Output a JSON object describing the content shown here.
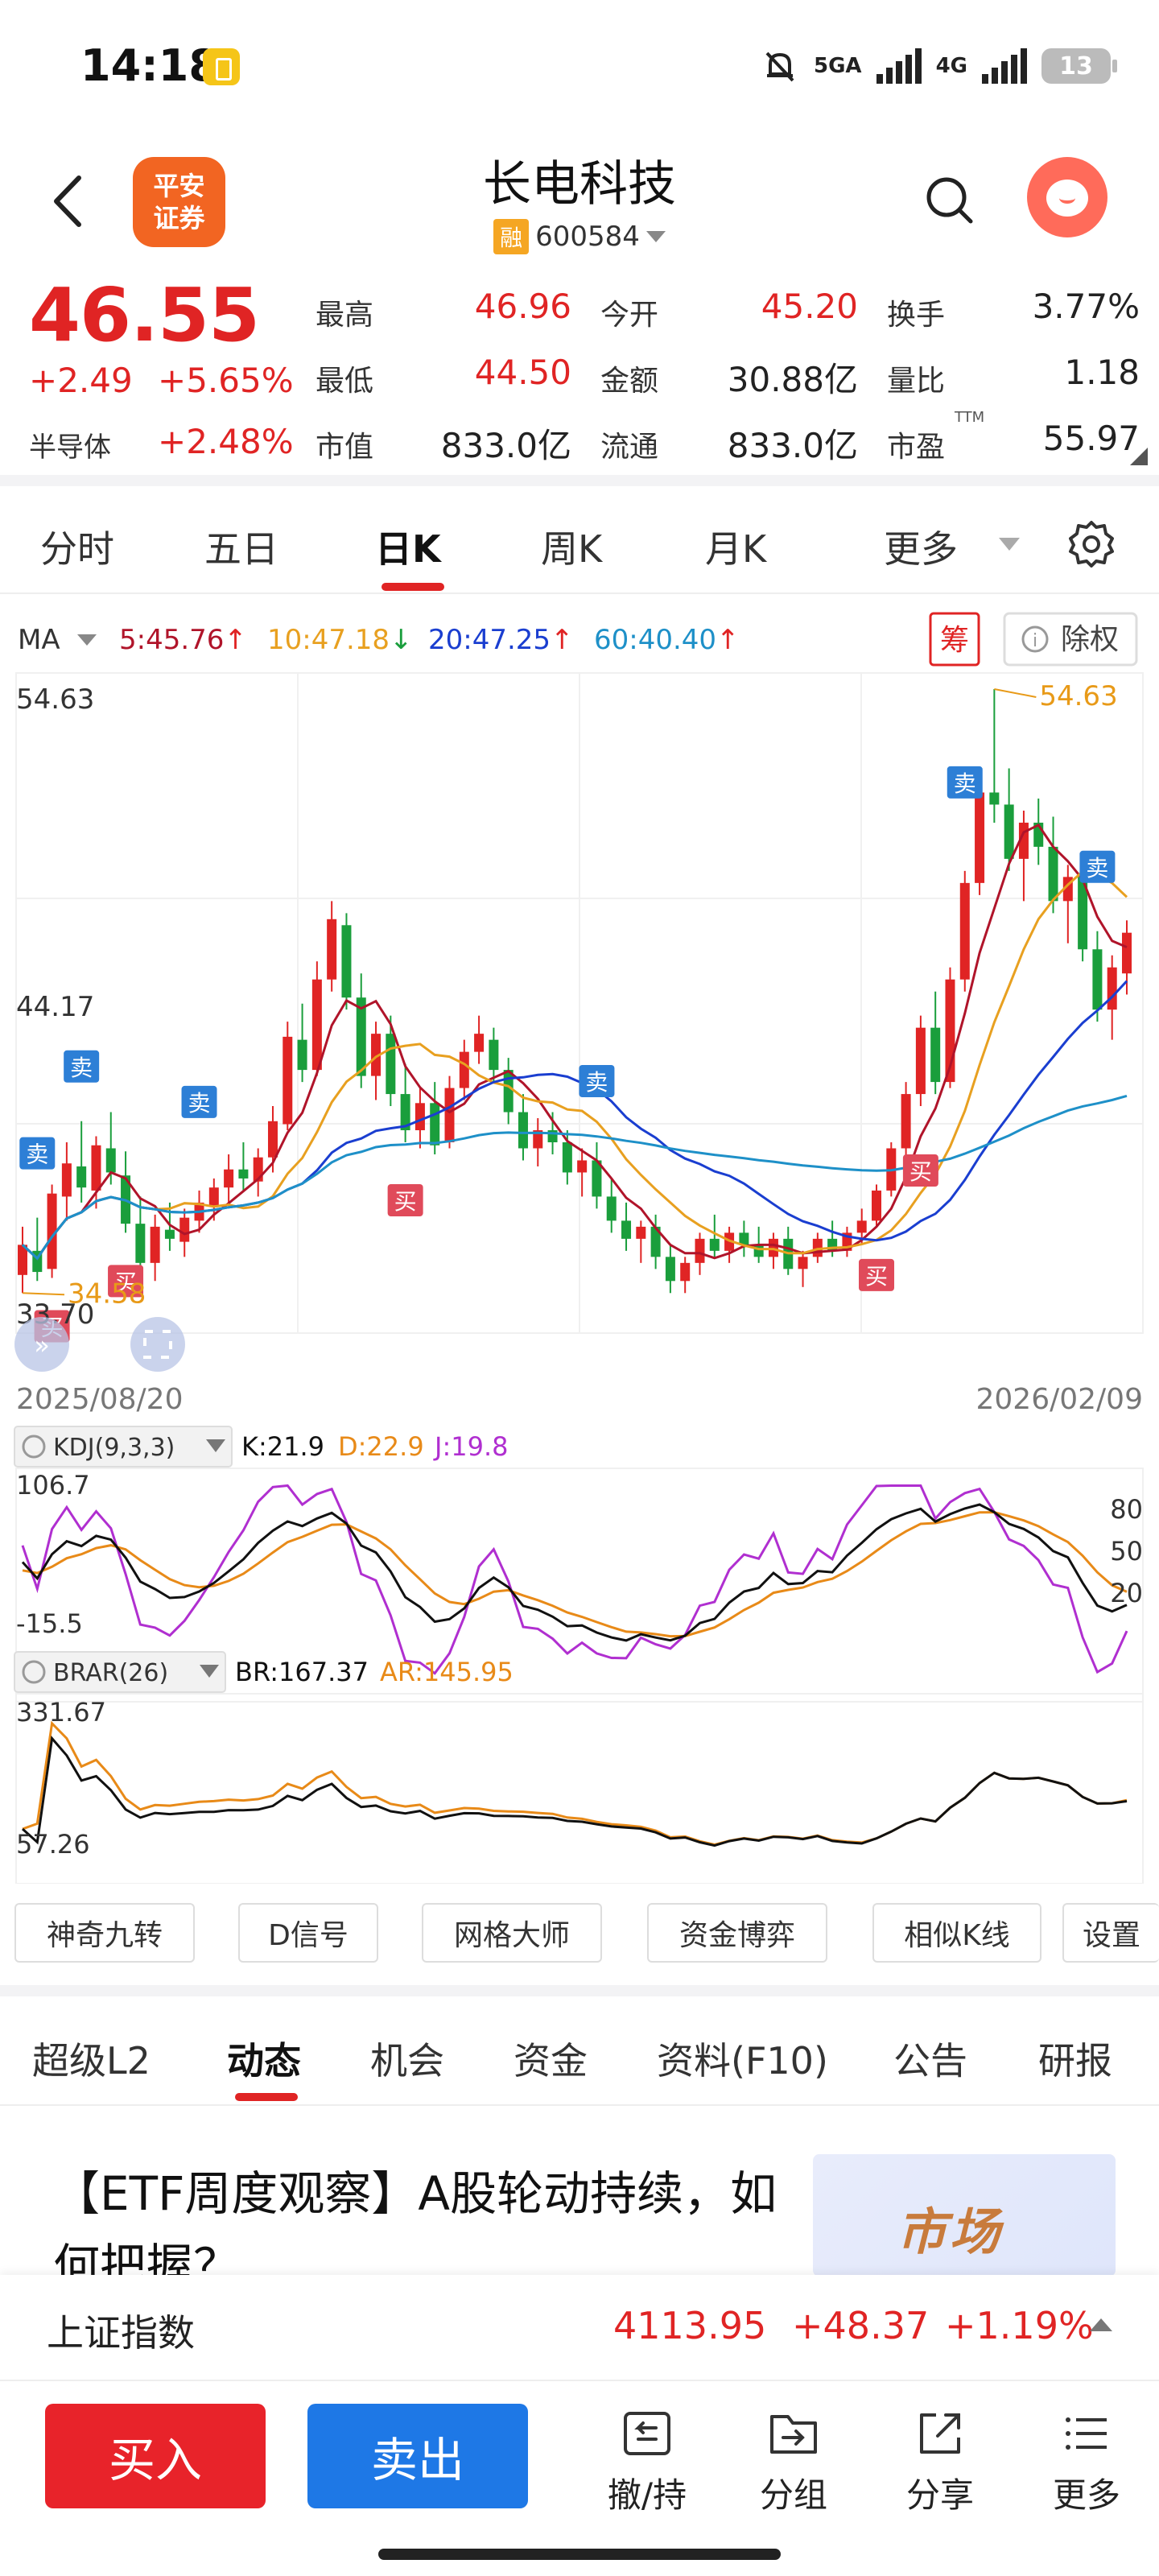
{
  "status_bar": {
    "time": "14:18",
    "net1": "5GA",
    "net2": "4G",
    "battery": "13"
  },
  "header": {
    "stock_name": "长电科技",
    "margin_badge": "融",
    "stock_code": "600584",
    "brand_line1": "平安",
    "brand_line2": "证券"
  },
  "quote": {
    "price": "46.55",
    "change_abs": "+2.49",
    "change_pct": "+5.65%",
    "sector_label": "半导体",
    "sector_pct": "+2.48%",
    "stats": [
      {
        "label": "最高",
        "value": "46.96"
      },
      {
        "label": "今开",
        "value": "45.20"
      },
      {
        "label": "换手",
        "value": "3.77%"
      },
      {
        "label": "最低",
        "value": "44.50"
      },
      {
        "label": "金额",
        "value": "30.88亿"
      },
      {
        "label": "量比",
        "value": "1.18"
      },
      {
        "label": "市值",
        "value": "833.0亿"
      },
      {
        "label": "流通",
        "value": "833.0亿"
      },
      {
        "label": "市盈",
        "value": "55.97"
      }
    ],
    "ttm_note": "TTM"
  },
  "period_tabs": [
    "分时",
    "五日",
    "日K",
    "周K",
    "月K",
    "更多"
  ],
  "active_period": "日K",
  "ma_bar": {
    "label": "MA",
    "items": [
      {
        "text": "5:45.76",
        "arrow": "↑",
        "color": "#b0142a"
      },
      {
        "text": "10:47.18",
        "arrow": "↓",
        "color": "#e8a020"
      },
      {
        "text": "20:47.25",
        "arrow": "↑",
        "color": "#1a3ed0"
      },
      {
        "text": "60:40.40",
        "arrow": "↑",
        "color": "#1e90c8"
      }
    ],
    "chip_button": "筹",
    "exright_button": "除权"
  },
  "chart_data": [
    {
      "type": "candlestick",
      "title": "",
      "x_start": "2025/08/20",
      "x_end": "2026/02/09",
      "y_labels": {
        "top": "54.63",
        "mid": "44.17",
        "bottom": "33.70"
      },
      "ylim": [
        33.7,
        54.63
      ],
      "annotations": {
        "max": "54.63",
        "min": "34.58",
        "buy": "买",
        "sell": "卖"
      },
      "candles": [
        {
          "o": 35.2,
          "h": 36.8,
          "l": 34.6,
          "c": 36.2
        },
        {
          "o": 36.0,
          "h": 37.1,
          "l": 35.0,
          "c": 35.3
        },
        {
          "o": 35.4,
          "h": 38.2,
          "l": 35.1,
          "c": 37.9
        },
        {
          "o": 37.8,
          "h": 39.6,
          "l": 37.0,
          "c": 38.9
        },
        {
          "o": 38.8,
          "h": 40.3,
          "l": 37.6,
          "c": 38.1
        },
        {
          "o": 38.0,
          "h": 39.8,
          "l": 37.4,
          "c": 39.5
        },
        {
          "o": 39.4,
          "h": 40.6,
          "l": 38.2,
          "c": 38.6
        },
        {
          "o": 38.5,
          "h": 39.3,
          "l": 36.6,
          "c": 36.9
        },
        {
          "o": 36.9,
          "h": 37.8,
          "l": 35.2,
          "c": 35.6
        },
        {
          "o": 35.6,
          "h": 37.2,
          "l": 35.0,
          "c": 36.8
        },
        {
          "o": 36.7,
          "h": 37.6,
          "l": 36.0,
          "c": 36.4
        },
        {
          "o": 36.3,
          "h": 37.4,
          "l": 35.8,
          "c": 37.1
        },
        {
          "o": 37.0,
          "h": 38.0,
          "l": 36.6,
          "c": 37.6
        },
        {
          "o": 37.5,
          "h": 38.4,
          "l": 37.0,
          "c": 38.1
        },
        {
          "o": 38.1,
          "h": 39.2,
          "l": 37.6,
          "c": 38.7
        },
        {
          "o": 38.7,
          "h": 39.6,
          "l": 38.0,
          "c": 38.4
        },
        {
          "o": 38.3,
          "h": 39.4,
          "l": 37.8,
          "c": 39.1
        },
        {
          "o": 39.1,
          "h": 40.8,
          "l": 38.6,
          "c": 40.3
        },
        {
          "o": 40.2,
          "h": 43.6,
          "l": 40.0,
          "c": 43.1
        },
        {
          "o": 43.0,
          "h": 44.2,
          "l": 41.6,
          "c": 42.0
        },
        {
          "o": 42.0,
          "h": 45.6,
          "l": 41.8,
          "c": 45.0
        },
        {
          "o": 45.0,
          "h": 47.6,
          "l": 44.6,
          "c": 47.0
        },
        {
          "o": 46.8,
          "h": 47.2,
          "l": 44.0,
          "c": 44.4
        },
        {
          "o": 44.4,
          "h": 45.2,
          "l": 41.4,
          "c": 41.8
        },
        {
          "o": 41.8,
          "h": 43.6,
          "l": 41.0,
          "c": 43.2
        },
        {
          "o": 43.2,
          "h": 43.8,
          "l": 40.8,
          "c": 41.2
        },
        {
          "o": 41.2,
          "h": 42.2,
          "l": 39.6,
          "c": 40.0
        },
        {
          "o": 40.0,
          "h": 41.4,
          "l": 39.4,
          "c": 40.9
        },
        {
          "o": 40.9,
          "h": 41.6,
          "l": 39.2,
          "c": 39.5
        },
        {
          "o": 39.6,
          "h": 41.8,
          "l": 39.4,
          "c": 41.4
        },
        {
          "o": 41.4,
          "h": 43.0,
          "l": 41.0,
          "c": 42.6
        },
        {
          "o": 42.6,
          "h": 43.8,
          "l": 42.2,
          "c": 43.2
        },
        {
          "o": 43.0,
          "h": 43.4,
          "l": 41.6,
          "c": 42.0
        },
        {
          "o": 42.0,
          "h": 42.4,
          "l": 40.2,
          "c": 40.6
        },
        {
          "o": 40.6,
          "h": 41.2,
          "l": 39.0,
          "c": 39.4
        },
        {
          "o": 39.4,
          "h": 40.4,
          "l": 38.8,
          "c": 40.0
        },
        {
          "o": 40.0,
          "h": 40.6,
          "l": 39.2,
          "c": 39.6
        },
        {
          "o": 39.6,
          "h": 40.0,
          "l": 38.2,
          "c": 38.6
        },
        {
          "o": 38.6,
          "h": 39.4,
          "l": 37.8,
          "c": 39.0
        },
        {
          "o": 39.0,
          "h": 39.6,
          "l": 37.4,
          "c": 37.8
        },
        {
          "o": 37.8,
          "h": 38.4,
          "l": 36.6,
          "c": 37.0
        },
        {
          "o": 37.0,
          "h": 37.6,
          "l": 36.0,
          "c": 36.4
        },
        {
          "o": 36.4,
          "h": 37.0,
          "l": 35.6,
          "c": 36.8
        },
        {
          "o": 36.8,
          "h": 37.2,
          "l": 35.4,
          "c": 35.8
        },
        {
          "o": 35.8,
          "h": 36.2,
          "l": 34.6,
          "c": 35.0
        },
        {
          "o": 35.0,
          "h": 35.8,
          "l": 34.6,
          "c": 35.6
        },
        {
          "o": 35.6,
          "h": 36.6,
          "l": 35.2,
          "c": 36.4
        },
        {
          "o": 36.4,
          "h": 37.2,
          "l": 35.8,
          "c": 36.0
        },
        {
          "o": 36.0,
          "h": 36.8,
          "l": 35.6,
          "c": 36.6
        },
        {
          "o": 36.6,
          "h": 37.0,
          "l": 35.8,
          "c": 36.2
        },
        {
          "o": 36.2,
          "h": 36.8,
          "l": 35.6,
          "c": 35.8
        },
        {
          "o": 35.8,
          "h": 36.6,
          "l": 35.4,
          "c": 36.4
        },
        {
          "o": 36.4,
          "h": 36.8,
          "l": 35.2,
          "c": 35.4
        },
        {
          "o": 35.4,
          "h": 36.0,
          "l": 34.8,
          "c": 35.8
        },
        {
          "o": 35.8,
          "h": 36.6,
          "l": 35.6,
          "c": 36.4
        },
        {
          "o": 36.4,
          "h": 37.0,
          "l": 35.8,
          "c": 36.0
        },
        {
          "o": 36.0,
          "h": 36.8,
          "l": 35.8,
          "c": 36.6
        },
        {
          "o": 36.6,
          "h": 37.4,
          "l": 36.2,
          "c": 37.0
        },
        {
          "o": 37.0,
          "h": 38.2,
          "l": 36.8,
          "c": 38.0
        },
        {
          "o": 38.0,
          "h": 39.6,
          "l": 37.8,
          "c": 39.4
        },
        {
          "o": 39.4,
          "h": 41.6,
          "l": 39.0,
          "c": 41.2
        },
        {
          "o": 41.2,
          "h": 43.8,
          "l": 40.8,
          "c": 43.4
        },
        {
          "o": 43.4,
          "h": 44.6,
          "l": 41.2,
          "c": 41.6
        },
        {
          "o": 41.6,
          "h": 45.4,
          "l": 41.4,
          "c": 45.0
        },
        {
          "o": 45.0,
          "h": 48.6,
          "l": 44.6,
          "c": 48.2
        },
        {
          "o": 48.2,
          "h": 51.6,
          "l": 47.8,
          "c": 51.2
        },
        {
          "o": 51.2,
          "h": 54.63,
          "l": 50.2,
          "c": 50.8
        },
        {
          "o": 50.8,
          "h": 52.0,
          "l": 48.6,
          "c": 49.0
        },
        {
          "o": 49.0,
          "h": 50.6,
          "l": 47.6,
          "c": 50.2
        },
        {
          "o": 50.2,
          "h": 51.0,
          "l": 48.8,
          "c": 49.4
        },
        {
          "o": 49.4,
          "h": 50.4,
          "l": 47.2,
          "c": 47.6
        },
        {
          "o": 47.6,
          "h": 48.8,
          "l": 46.2,
          "c": 48.4
        },
        {
          "o": 48.4,
          "h": 48.8,
          "l": 45.6,
          "c": 46.0
        },
        {
          "o": 46.0,
          "h": 46.6,
          "l": 43.6,
          "c": 44.0
        },
        {
          "o": 44.0,
          "h": 45.8,
          "l": 43.0,
          "c": 45.4
        },
        {
          "o": 45.2,
          "h": 46.96,
          "l": 44.5,
          "c": 46.55
        }
      ]
    },
    {
      "type": "line",
      "title": "KDJ(9,3,3)",
      "ylim": [
        -15.5,
        106.7
      ],
      "y_labels": {
        "top": "106.7",
        "bottom": "-15.5"
      },
      "right_ticks": [
        "80",
        "50",
        "20"
      ],
      "series": [
        {
          "name": "K",
          "latest": "K:21.9"
        },
        {
          "name": "D",
          "latest": "D:22.9"
        },
        {
          "name": "J",
          "latest": "J:19.8"
        }
      ]
    },
    {
      "type": "line",
      "title": "BRAR(26)",
      "ylim": [
        57.26,
        331.67
      ],
      "y_labels": {
        "top": "331.67",
        "bottom": "57.26"
      },
      "series": [
        {
          "name": "BR",
          "latest": "BR:167.37"
        },
        {
          "name": "AR",
          "latest": "AR:145.95"
        }
      ]
    }
  ],
  "tools": [
    "神奇九转",
    "D信号",
    "网格大师",
    "资金博弈",
    "相似K线",
    "设置"
  ],
  "news_tabs": [
    "超级L2",
    "动态",
    "机会",
    "资金",
    "资料(F10)",
    "公告",
    "研报"
  ],
  "active_news_tab": "动态",
  "news": {
    "title": "【ETF周度观察】A股轮动持续，如何把握？",
    "thumb_text": "市场"
  },
  "index_bar": {
    "name": "上证指数",
    "value": "4113.95",
    "change": "+48.37",
    "pct": "+1.19%"
  },
  "bottom": {
    "buy": "买入",
    "sell": "卖出",
    "actions": [
      "撤/持",
      "分组",
      "分享",
      "更多"
    ]
  },
  "colors": {
    "up": "#e02424",
    "down": "#1a9e3c",
    "ma5": "#b0142a",
    "ma10": "#e8a020",
    "ma20": "#1a3ed0",
    "ma60": "#1e90c8",
    "k": "#111111",
    "d": "#e88a18",
    "j": "#b02fd0"
  }
}
